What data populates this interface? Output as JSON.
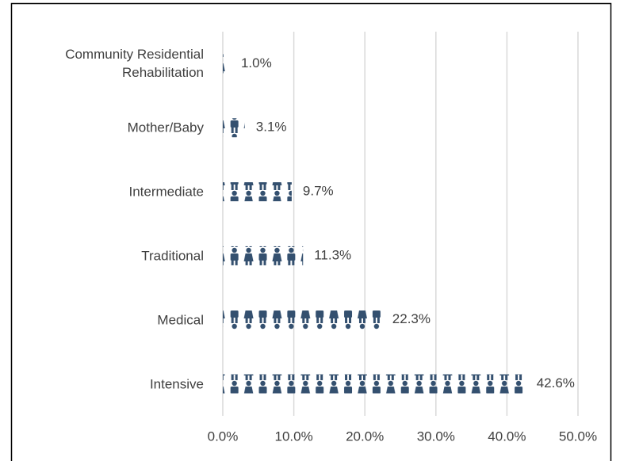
{
  "chart_data": {
    "type": "pictograph_bar",
    "categories": [
      "Community Residential Rehabilitation",
      "Mother/Baby",
      "Intermediate",
      "Traditional",
      "Medical",
      "Intensive"
    ],
    "values": [
      1.0,
      3.1,
      9.7,
      11.3,
      22.3,
      42.6
    ],
    "value_labels": [
      "1.0%",
      "3.1%",
      "9.7%",
      "11.3%",
      "22.3%",
      "42.6%"
    ],
    "color": "#34506f",
    "xlim": [
      0,
      50
    ],
    "xticks": [
      {
        "value": 0,
        "label": "0.0%"
      },
      {
        "value": 10,
        "label": "10.0%"
      },
      {
        "value": 20,
        "label": "20.0%"
      },
      {
        "value": 30,
        "label": "30.0%"
      },
      {
        "value": 40,
        "label": "40.0%"
      },
      {
        "value": 50,
        "label": "50.0%"
      }
    ],
    "grid": true
  }
}
